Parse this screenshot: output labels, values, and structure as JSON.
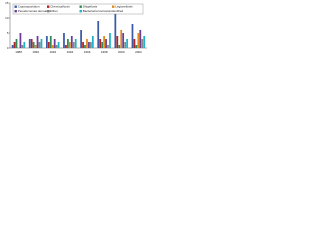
{
  "chart_data": {
    "type": "bar",
    "categories": [
      "1988",
      "1990",
      "1992",
      "1994",
      "1996",
      "1998",
      "2000",
      "2002"
    ],
    "series": [
      {
        "name": "Cryptosporidium",
        "color": "#3b5ba9",
        "values": [
          1,
          3,
          4,
          5,
          6,
          9,
          14,
          8
        ]
      },
      {
        "name": "Chemical/toxin",
        "color": "#b22222",
        "values": [
          2,
          3,
          2,
          1,
          2,
          3,
          4,
          3
        ]
      },
      {
        "name": "Shigellosis",
        "color": "#2e8b57",
        "values": [
          3,
          2,
          4,
          3,
          1,
          2,
          1,
          1
        ]
      },
      {
        "name": "Legionellosis",
        "color": "#e08a1e",
        "values": [
          0,
          1,
          1,
          2,
          3,
          4,
          6,
          5
        ]
      },
      {
        "name": "Pseudomonas dermatitis",
        "color": "#6a3d9a",
        "values": [
          5,
          4,
          3,
          4,
          2,
          3,
          5,
          6
        ]
      },
      {
        "name": "Other",
        "color": "#888888",
        "values": [
          1,
          2,
          1,
          2,
          2,
          1,
          2,
          3
        ]
      },
      {
        "name": "Bacteria/norovirus/unidentified",
        "color": "#20b2c8",
        "values": [
          2,
          3,
          2,
          3,
          4,
          5,
          3,
          4
        ]
      }
    ],
    "ylim": [
      0,
      15
    ],
    "yticks": [
      0,
      5,
      10,
      15
    ],
    "grid": false
  }
}
